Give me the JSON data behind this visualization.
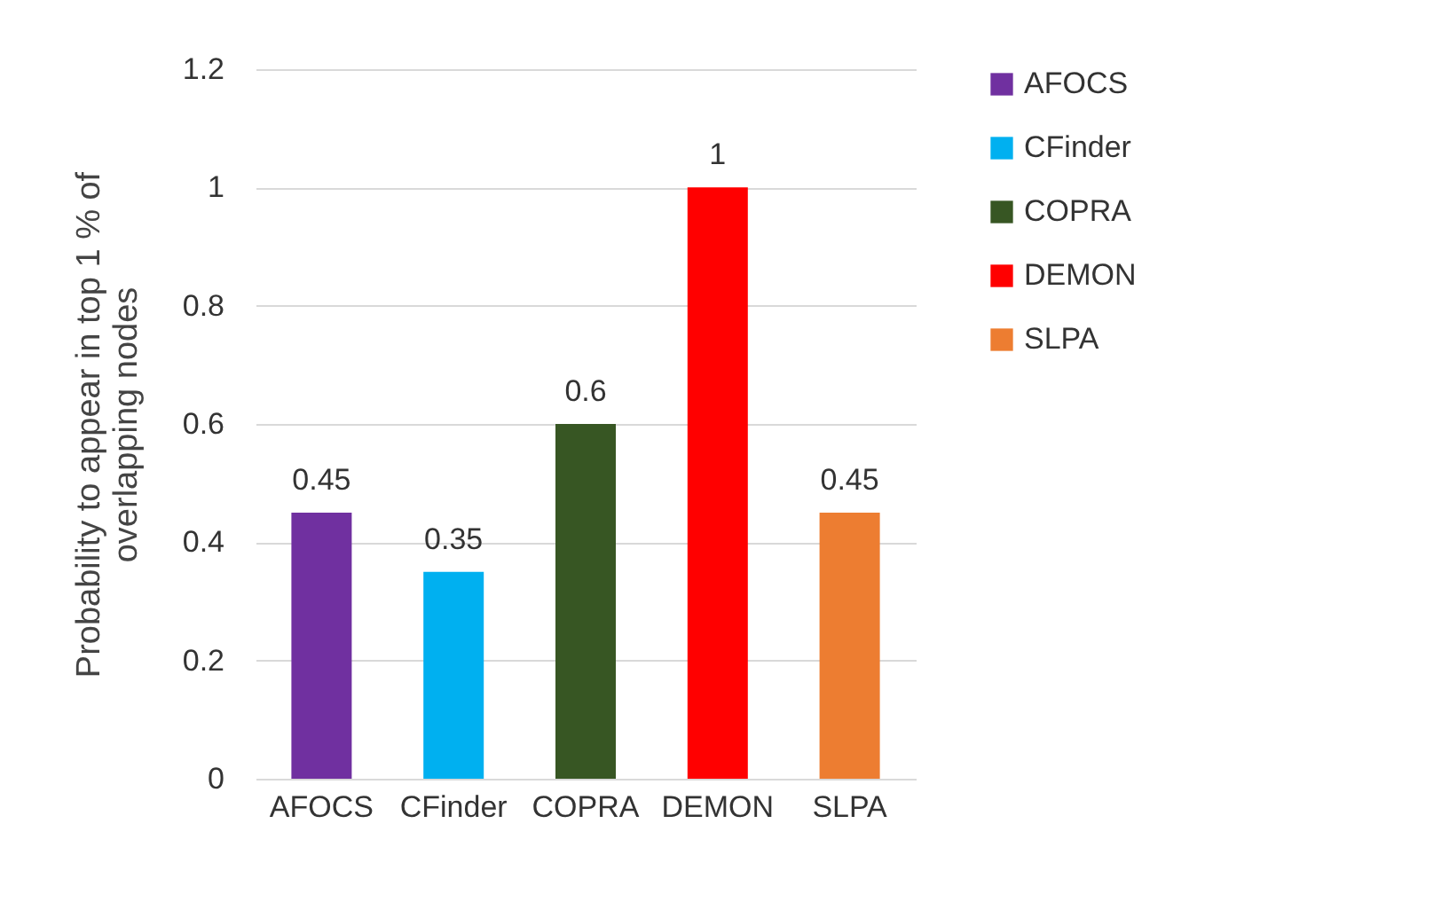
{
  "chart_data": {
    "type": "bar",
    "ylabel": "Probability to appear in top 1 % of\noverlapping nodes",
    "categories": [
      "AFOCS",
      "CFinder",
      "COPRA",
      "DEMON",
      "SLPA"
    ],
    "series": [
      {
        "name": "AFOCS",
        "color": "#7030a0",
        "values": [
          0.45,
          null,
          null,
          null,
          null
        ]
      },
      {
        "name": "CFinder",
        "color": "#00b0f0",
        "values": [
          null,
          0.35,
          null,
          null,
          null
        ]
      },
      {
        "name": "COPRA",
        "color": "#375623",
        "values": [
          null,
          null,
          0.6,
          null,
          null
        ]
      },
      {
        "name": "DEMON",
        "color": "#ff0000",
        "values": [
          null,
          null,
          null,
          1,
          null
        ]
      },
      {
        "name": "SLPA",
        "color": "#ed7d31",
        "values": [
          null,
          null,
          null,
          null,
          0.45
        ]
      }
    ],
    "ylim": [
      0,
      1.2
    ],
    "yticks": [
      {
        "value": 0,
        "label": "0"
      },
      0.2,
      0.4,
      0.6,
      0.8,
      {
        "value": 1,
        "label": "1"
      },
      1.2
    ],
    "grid": "y",
    "legend": "right",
    "data_labels": true
  }
}
